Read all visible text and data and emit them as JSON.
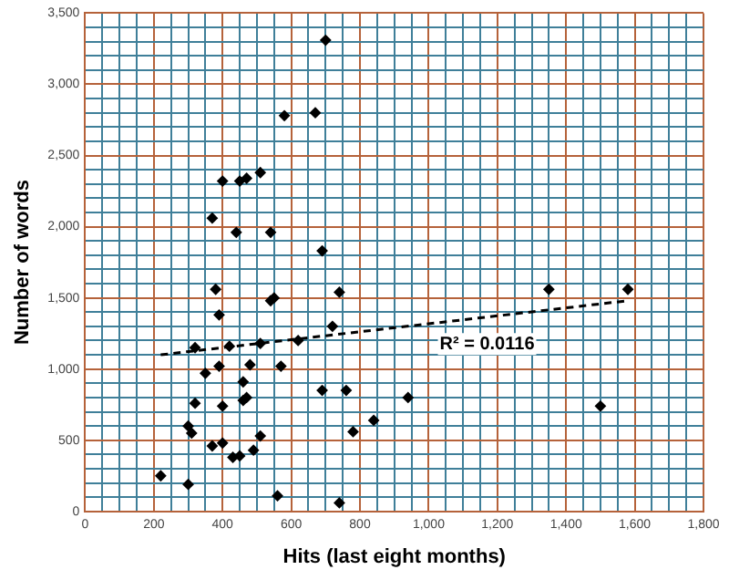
{
  "chart_data": {
    "type": "scatter",
    "xlabel": "Hits (last eight months)",
    "ylabel": "Number of words",
    "xlim": [
      0,
      1800
    ],
    "ylim": [
      0,
      3500
    ],
    "xticks": [
      0,
      {
        "value": 50,
        "label": null
      },
      {
        "value": 100,
        "label": null
      },
      {
        "value": 150,
        "label": null
      },
      200,
      {
        "value": 250,
        "label": null
      },
      {
        "value": 300,
        "label": null
      },
      {
        "value": 350,
        "label": null
      },
      400,
      {
        "value": 450,
        "label": null
      },
      {
        "value": 500,
        "label": null
      },
      {
        "value": 550,
        "label": null
      },
      600,
      {
        "value": 650,
        "label": null
      },
      {
        "value": 700,
        "label": null
      },
      {
        "value": 750,
        "label": null
      },
      800,
      {
        "value": 850,
        "label": null
      },
      {
        "value": 900,
        "label": null
      },
      {
        "value": 950,
        "label": null
      },
      {
        "value": 1000,
        "label": "1,000"
      },
      {
        "value": 1050,
        "label": null
      },
      {
        "value": 1100,
        "label": null
      },
      {
        "value": 1150,
        "label": null
      },
      {
        "value": 1200,
        "label": "1,200"
      },
      {
        "value": 1250,
        "label": null
      },
      {
        "value": 1300,
        "label": null
      },
      {
        "value": 1350,
        "label": null
      },
      {
        "value": 1400,
        "label": "1,400"
      },
      {
        "value": 1450,
        "label": null
      },
      {
        "value": 1500,
        "label": null
      },
      {
        "value": 1550,
        "label": null
      },
      {
        "value": 1600,
        "label": "1,600"
      },
      {
        "value": 1650,
        "label": null
      },
      {
        "value": 1700,
        "label": null
      },
      {
        "value": 1750,
        "label": null
      },
      {
        "value": 1800,
        "label": "1,800"
      }
    ],
    "yticks": [
      0,
      {
        "value": 100,
        "label": null
      },
      {
        "value": 200,
        "label": null
      },
      {
        "value": 300,
        "label": null
      },
      {
        "value": 400,
        "label": null
      },
      500,
      {
        "value": 600,
        "label": null
      },
      {
        "value": 700,
        "label": null
      },
      {
        "value": 800,
        "label": null
      },
      {
        "value": 900,
        "label": null
      },
      {
        "value": 1000,
        "label": "1,000"
      },
      {
        "value": 1100,
        "label": null
      },
      {
        "value": 1200,
        "label": null
      },
      {
        "value": 1300,
        "label": null
      },
      {
        "value": 1400,
        "label": null
      },
      {
        "value": 1500,
        "label": "1,500"
      },
      {
        "value": 1600,
        "label": null
      },
      {
        "value": 1700,
        "label": null
      },
      {
        "value": 1800,
        "label": null
      },
      {
        "value": 1900,
        "label": null
      },
      {
        "value": 2000,
        "label": "2,000"
      },
      {
        "value": 2100,
        "label": null
      },
      {
        "value": 2200,
        "label": null
      },
      {
        "value": 2300,
        "label": null
      },
      {
        "value": 2400,
        "label": null
      },
      {
        "value": 2500,
        "label": "2,500"
      },
      {
        "value": 2600,
        "label": null
      },
      {
        "value": 2700,
        "label": null
      },
      {
        "value": 2800,
        "label": null
      },
      {
        "value": 2900,
        "label": null
      },
      {
        "value": 3000,
        "label": "3,000"
      },
      {
        "value": 3100,
        "label": null
      },
      {
        "value": 3200,
        "label": null
      },
      {
        "value": 3300,
        "label": null
      },
      {
        "value": 3400,
        "label": null
      },
      {
        "value": 3500,
        "label": "3,500"
      }
    ],
    "grid": true,
    "marker": "diamond",
    "annotations": [
      "R² = 0.0116"
    ],
    "series": [
      {
        "color": "#000000",
        "x": [
          220,
          300,
          300,
          310,
          320,
          320,
          350,
          380,
          370,
          390,
          400,
          400,
          390,
          420,
          430,
          450,
          460,
          460,
          470,
          480,
          490,
          510,
          510,
          540,
          550,
          560,
          570,
          620,
          690,
          740,
          740,
          760,
          780,
          840,
          720,
          700,
          580,
          670,
          400,
          450,
          470,
          510,
          370,
          440,
          540,
          690,
          1350,
          1580,
          940,
          1500
        ],
        "values": [
          250,
          190,
          600,
          550,
          1150,
          760,
          970,
          1560,
          460,
          1380,
          740,
          480,
          1020,
          1160,
          380,
          390,
          910,
          780,
          800,
          1030,
          430,
          1180,
          530,
          1480,
          1500,
          110,
          1020,
          1200,
          850,
          1540,
          60,
          850,
          560,
          640,
          1300,
          3310,
          2780,
          2800,
          2320,
          2320,
          2340,
          2380,
          2060,
          1960,
          1960,
          1830,
          1560,
          1560,
          800,
          740
        ]
      },
      {
        "type": "line",
        "color": "#000000",
        "line_style": "dashed",
        "marker": "none",
        "x": [
          220,
          1580
        ],
        "values": [
          1100,
          1480
        ]
      }
    ]
  }
}
